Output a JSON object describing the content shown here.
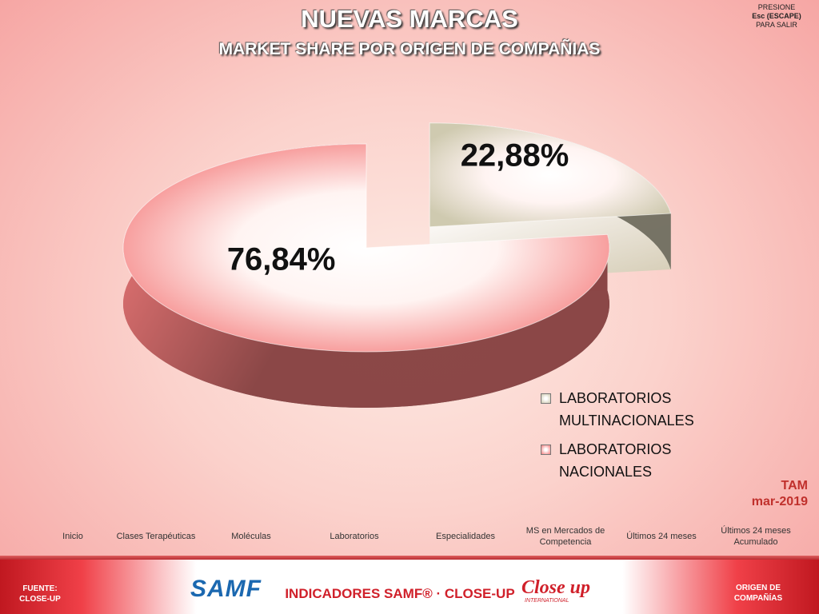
{
  "chart_data": {
    "type": "pie",
    "title": "NUEVAS MARCAS",
    "subtitle": "MARKET SHARE POR ORIGEN DE COMPAÑIAS",
    "categories": [
      "LABORATORIOS MULTINACIONALES",
      "LABORATORIOS NACIONALES"
    ],
    "values": [
      22.88,
      76.84
    ],
    "value_labels": [
      "22,88%",
      "76,84%"
    ],
    "colors": [
      "#cfcab0",
      "#f47a7a"
    ],
    "exploded": [
      true,
      false
    ],
    "legend": "bottom-right"
  },
  "exit_note": [
    "PRESIONE",
    "Esc (ESCAPE)",
    "PARA SALIR"
  ],
  "period": [
    "TAM",
    "mar-2019"
  ],
  "nav": [
    "Inicio",
    "Clases Terapéuticas",
    "Moléculas",
    "Laboratorios",
    "Especialidades",
    "MS en Mercados de Competencia",
    "Últimos 24 meses",
    "Últimos 24 meses Acumulado"
  ],
  "footer": {
    "source": "FUENTE: CLOSE-UP",
    "brand": "SAMF",
    "center": "INDICADORES SAMF® · CLOSE-UP",
    "logo": "Close up",
    "logo_sub": "INTERNATIONAL",
    "section": "ORIGEN DE COMPAÑÍAS"
  }
}
